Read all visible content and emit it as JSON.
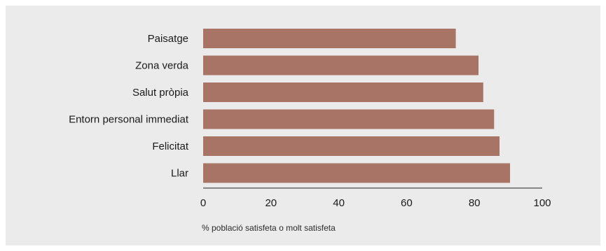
{
  "chart_data": {
    "type": "bar",
    "orientation": "horizontal",
    "categories": [
      "Paisatge",
      "Zona verda",
      "Salut pròpia",
      "Entorn personal immediat",
      "Felicitat",
      "Llar"
    ],
    "values": [
      74.5,
      81.2,
      82.6,
      85.8,
      87.4,
      90.5
    ],
    "xlim": [
      0,
      100
    ],
    "xticks": [
      0,
      20,
      40,
      60,
      80,
      100
    ],
    "xlabel": "% població satisfeta o molt satisfeta",
    "title": "",
    "grid": false,
    "bar_color": "#a87466",
    "background_color": "#ebebeb"
  }
}
